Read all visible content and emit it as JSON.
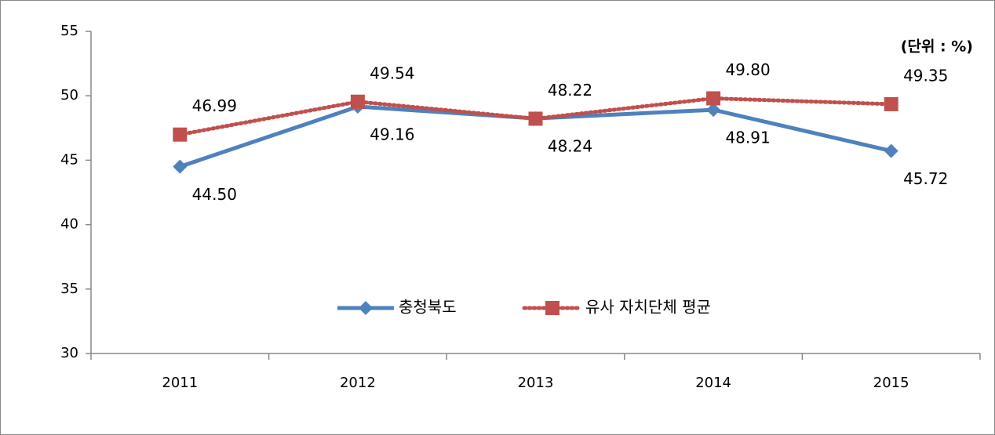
{
  "chart_data": {
    "type": "line",
    "annotation": "(단위 : %)",
    "categories": [
      "2011",
      "2012",
      "2013",
      "2014",
      "2015"
    ],
    "series": [
      {
        "name": "충청북도",
        "color": "#4f81bd",
        "marker": "diamond",
        "style": "solid",
        "values": [
          44.5,
          49.16,
          48.24,
          48.91,
          45.72
        ],
        "value_labels": [
          "44.50",
          "49.16",
          "48.24",
          "48.91",
          "45.72"
        ]
      },
      {
        "name": "유사 자치단체 평균",
        "color": "#c0504d",
        "marker": "square",
        "style": "dotted",
        "values": [
          46.99,
          49.54,
          48.22,
          49.8,
          49.35
        ],
        "value_labels": [
          "46.99",
          "49.54",
          "48.22",
          "49.80",
          "49.35"
        ]
      }
    ],
    "ylim": [
      30,
      55
    ],
    "yticks": [
      30,
      35,
      40,
      45,
      50,
      55
    ],
    "grid": false
  }
}
